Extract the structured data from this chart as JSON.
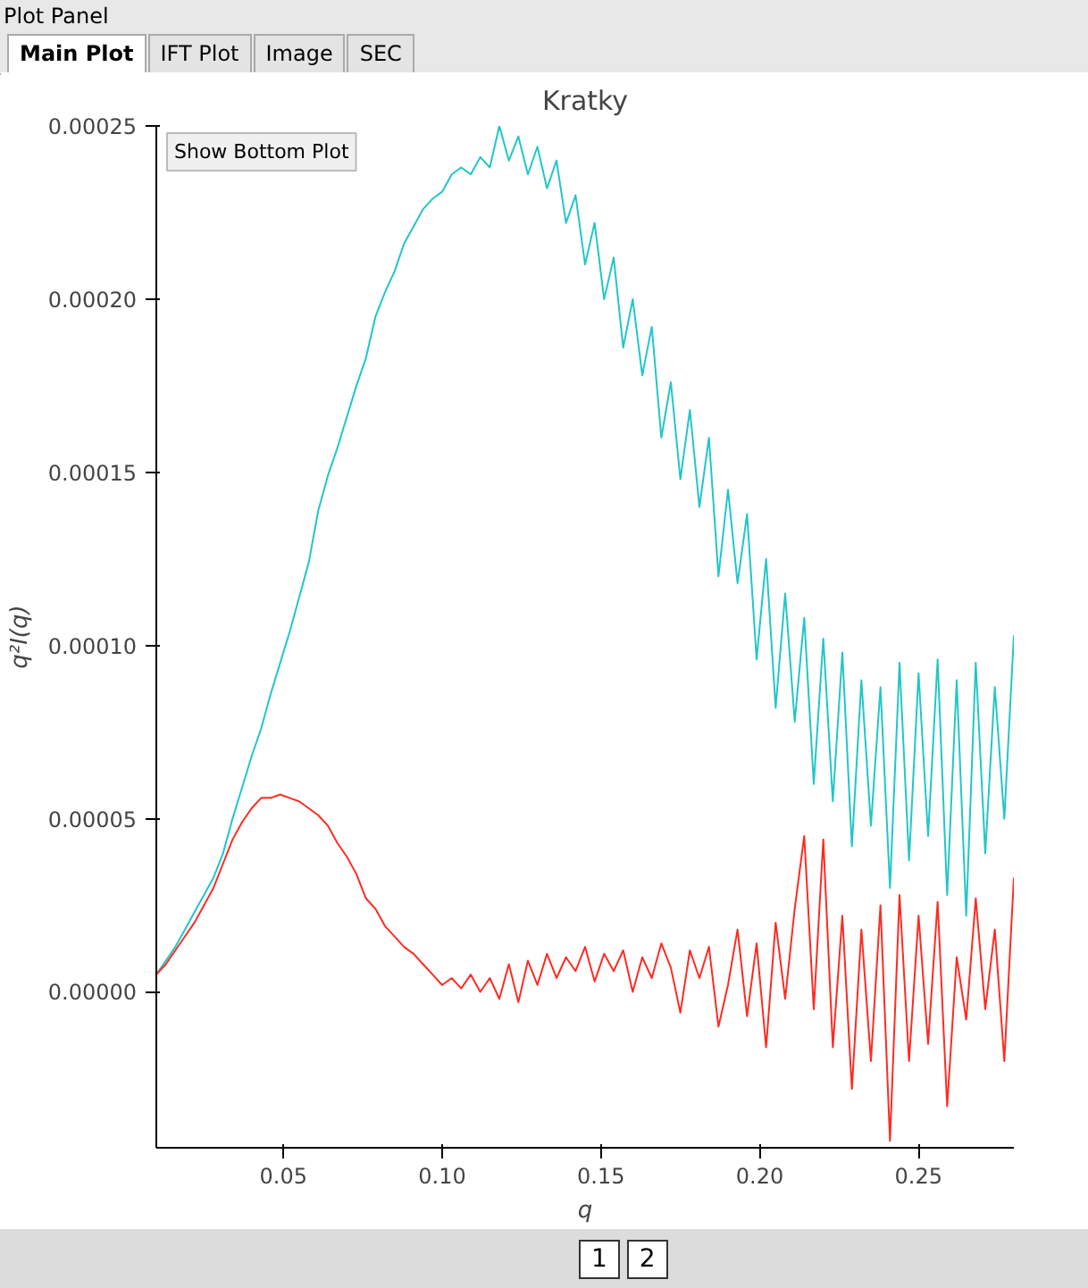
{
  "chart_data": {
    "type": "line",
    "title": "Kratky",
    "xlabel": "q",
    "ylabel": "q²I(q)",
    "annotations": [
      "Plot Panel",
      "Main Plot",
      "IFT Plot",
      "Image",
      "SEC",
      "Show Bottom Plot",
      "1",
      "2"
    ],
    "x": [
      0.01,
      0.013,
      0.016,
      0.019,
      0.022,
      0.025,
      0.028,
      0.031,
      0.034,
      0.037,
      0.04,
      0.043,
      0.046,
      0.049,
      0.052,
      0.055,
      0.058,
      0.061,
      0.064,
      0.067,
      0.07,
      0.073,
      0.076,
      0.079,
      0.082,
      0.085,
      0.088,
      0.091,
      0.094,
      0.097,
      0.1,
      0.103,
      0.106,
      0.109,
      0.112,
      0.115,
      0.118,
      0.121,
      0.124,
      0.127,
      0.13,
      0.133,
      0.136,
      0.139,
      0.142,
      0.145,
      0.148,
      0.151,
      0.154,
      0.157,
      0.16,
      0.163,
      0.166,
      0.169,
      0.172,
      0.175,
      0.178,
      0.181,
      0.184,
      0.187,
      0.19,
      0.193,
      0.196,
      0.199,
      0.202,
      0.205,
      0.208,
      0.211,
      0.214,
      0.217,
      0.22,
      0.223,
      0.226,
      0.229,
      0.232,
      0.235,
      0.238,
      0.241,
      0.244,
      0.247,
      0.25,
      0.253,
      0.256,
      0.259,
      0.262,
      0.265,
      0.268,
      0.271,
      0.274,
      0.277,
      0.28
    ],
    "series": [
      {
        "color": "#22c6c9",
        "values": [
          5e-06,
          9e-06,
          1.3e-05,
          1.8e-05,
          2.3e-05,
          2.8e-05,
          3.3e-05,
          4e-05,
          5e-05,
          5.9e-05,
          6.8e-05,
          7.6e-05,
          8.6e-05,
          9.5e-05,
          0.000104,
          0.000114,
          0.000124,
          0.000139,
          0.000149,
          0.000157,
          0.000166,
          0.000175,
          0.000183,
          0.000195,
          0.000202,
          0.000208,
          0.000216,
          0.000221,
          0.000226,
          0.000229,
          0.000231,
          0.000236,
          0.000238,
          0.000236,
          0.000241,
          0.000238,
          0.00025,
          0.00024,
          0.000247,
          0.000236,
          0.000244,
          0.000232,
          0.00024,
          0.000222,
          0.00023,
          0.00021,
          0.000222,
          0.0002,
          0.000212,
          0.000186,
          0.0002,
          0.000178,
          0.000192,
          0.00016,
          0.000176,
          0.000148,
          0.000168,
          0.00014,
          0.00016,
          0.00012,
          0.000145,
          0.000118,
          0.000138,
          9.6e-05,
          0.000125,
          8.2e-05,
          0.000115,
          7.8e-05,
          0.000108,
          6e-05,
          0.000102,
          5.5e-05,
          9.8e-05,
          4.2e-05,
          9e-05,
          4.8e-05,
          8.8e-05,
          3e-05,
          9.5e-05,
          3.8e-05,
          9.2e-05,
          4.5e-05,
          9.6e-05,
          2.8e-05,
          9e-05,
          2.2e-05,
          9.5e-05,
          4e-05,
          8.8e-05,
          5e-05,
          0.000103
        ]
      },
      {
        "color": "#ff2b22",
        "values": [
          5e-06,
          8e-06,
          1.2e-05,
          1.6e-05,
          2e-05,
          2.5e-05,
          3e-05,
          3.7e-05,
          4.4e-05,
          4.9e-05,
          5.3e-05,
          5.6e-05,
          5.6e-05,
          5.7e-05,
          5.6e-05,
          5.5e-05,
          5.3e-05,
          5.1e-05,
          4.8e-05,
          4.3e-05,
          3.9e-05,
          3.4e-05,
          2.7e-05,
          2.4e-05,
          1.9e-05,
          1.6e-05,
          1.3e-05,
          1.1e-05,
          8e-06,
          5e-06,
          2e-06,
          4e-06,
          1e-06,
          5e-06,
          0.0,
          4e-06,
          -2e-06,
          8e-06,
          -3e-06,
          9e-06,
          2e-06,
          1.1e-05,
          4e-06,
          1e-05,
          6e-06,
          1.3e-05,
          3e-06,
          1.1e-05,
          6e-06,
          1.2e-05,
          0.0,
          1e-05,
          4e-06,
          1.4e-05,
          7e-06,
          -6e-06,
          1.2e-05,
          4e-06,
          1.3e-05,
          -1e-05,
          2e-06,
          1.8e-05,
          -7e-06,
          1.4e-05,
          -1.6e-05,
          2e-05,
          -2e-06,
          2.4e-05,
          4.5e-05,
          -5e-06,
          4.4e-05,
          -1.6e-05,
          2.2e-05,
          -2.8e-05,
          1.8e-05,
          -2e-05,
          2.5e-05,
          -4.3e-05,
          2.8e-05,
          -2e-05,
          2.2e-05,
          -1.5e-05,
          2.6e-05,
          -3.3e-05,
          1e-05,
          -8e-06,
          2.7e-05,
          -5e-06,
          1.8e-05,
          -2e-05,
          3.3e-05
        ]
      }
    ],
    "xlim": [
      0.01,
      0.28
    ],
    "xticks": [
      0.05,
      {
        "value": 0.1,
        "label": "0.10"
      },
      0.15,
      {
        "value": 0.2,
        "label": "0.20"
      },
      0.25
    ],
    "ylim": [
      -4.5e-05,
      0.00025
    ],
    "yticks": [
      {
        "value": 0,
        "label": "0.00000"
      },
      {
        "value": 5e-05,
        "label": "0.00005"
      },
      {
        "value": 0.0001,
        "label": "0.00010"
      },
      {
        "value": 0.00015,
        "label": "0.00015"
      },
      {
        "value": 0.0002,
        "label": "0.00020"
      },
      {
        "value": 0.00025,
        "label": "0.00025"
      }
    ],
    "grid": false
  }
}
